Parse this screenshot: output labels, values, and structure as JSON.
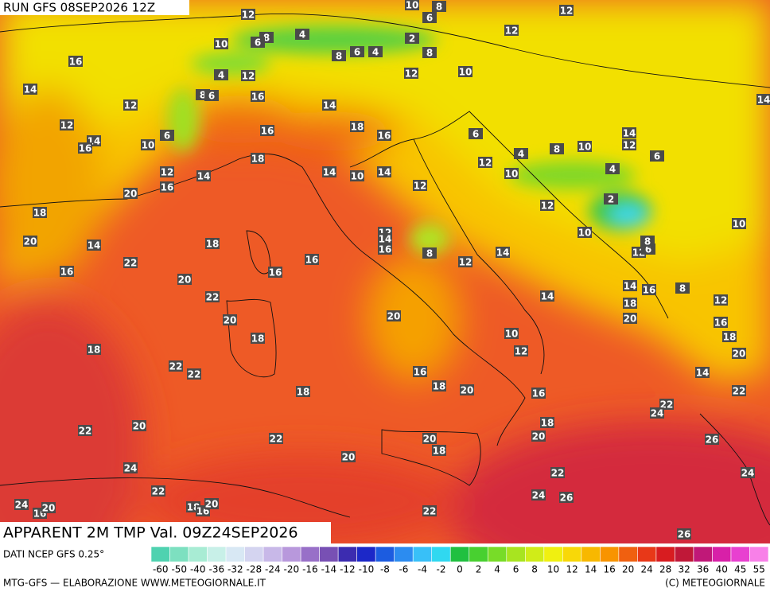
{
  "header": {
    "run": "RUN GFS 08SEP2026 12Z"
  },
  "footer": {
    "title": "APPARENT 2M TMP Val. 09Z24SEP2026",
    "source": "DATI NCEP GFS 0.25°",
    "credit": "MTG-GFS — ELABORAZIONE WWW.METEOGIORNALE.IT",
    "copyright": "(C) METEOGIORNALE"
  },
  "legend": {
    "labels": [
      -60,
      -50,
      -40,
      -36,
      -32,
      -28,
      -24,
      -20,
      -16,
      -14,
      -12,
      -10,
      -8,
      -6,
      -4,
      -2,
      0,
      2,
      4,
      6,
      8,
      10,
      12,
      14,
      16,
      20,
      24,
      28,
      32,
      36,
      40,
      45,
      55
    ],
    "colors": [
      "#4fd2b0",
      "#7de0c0",
      "#a8ecd4",
      "#c8f0e8",
      "#d8e8f4",
      "#d4d4f0",
      "#c8b8e8",
      "#b898dc",
      "#9870c8",
      "#7850b4",
      "#3c2cb0",
      "#1c28c8",
      "#1c5ce0",
      "#2c8cf0",
      "#38c0f8",
      "#30d8f0",
      "#20c040",
      "#48d030",
      "#78dc28",
      "#a8e420",
      "#d0ec18",
      "#f0f010",
      "#f8d808",
      "#f8b800",
      "#f89400",
      "#f06010",
      "#e83818",
      "#d81c20",
      "#c01838",
      "#c01878",
      "#d820a8",
      "#e840d0",
      "#f880e8"
    ]
  },
  "map_labels": [
    12,
    10,
    6,
    8,
    12,
    4,
    8,
    6,
    10,
    2,
    12,
    16,
    8,
    6,
    4,
    8,
    4,
    12,
    12,
    10,
    14,
    8,
    6,
    16,
    12,
    14,
    14,
    12,
    16,
    18,
    16,
    6,
    14,
    14,
    16,
    10,
    6,
    10,
    8,
    12,
    6,
    4,
    18,
    12,
    14,
    14,
    10,
    14,
    12,
    10,
    4,
    16,
    12,
    20,
    18,
    2,
    12,
    10,
    12,
    14,
    16,
    20,
    14,
    18,
    10,
    8,
    12,
    6,
    16,
    8,
    12,
    14,
    22,
    16,
    16,
    20,
    14,
    16,
    8,
    22,
    14,
    12,
    18,
    20,
    20,
    20,
    16,
    18,
    18,
    18,
    10,
    12,
    20,
    22,
    22,
    16,
    14,
    18,
    20,
    18,
    16,
    22,
    22,
    24,
    18,
    22,
    20,
    20,
    20,
    22,
    26,
    18,
    20,
    24,
    22,
    22,
    24,
    18,
    16,
    20,
    24,
    16,
    20,
    24,
    26,
    22,
    26
  ]
}
